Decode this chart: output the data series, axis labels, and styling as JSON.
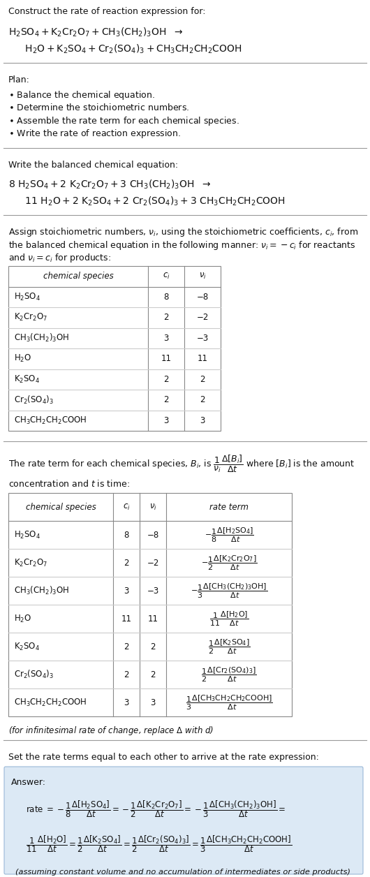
{
  "bg_color": "#ffffff",
  "answer_bg_color": "#dce9f5",
  "title_text": "Construct the rate of reaction expression for:",
  "reaction_line1": "$\\mathrm{H_2SO_4 + K_2Cr_2O_7 + CH_3(CH_2)_3OH}$  $\\rightarrow$",
  "reaction_line2": "  $\\mathrm{H_2O + K_2SO_4 + Cr_2(SO_4)_3 + CH_3CH_2CH_2COOH}$",
  "plan_title": "Plan:",
  "plan_items": [
    "$\\bullet$ Balance the chemical equation.",
    "$\\bullet$ Determine the stoichiometric numbers.",
    "$\\bullet$ Assemble the rate term for each chemical species.",
    "$\\bullet$ Write the rate of reaction expression."
  ],
  "balanced_title": "Write the balanced chemical equation:",
  "balanced_line1": "$\\mathrm{8\\ H_2SO_4 + 2\\ K_2Cr_2O_7 + 3\\ CH_3(CH_2)_3OH}$  $\\rightarrow$",
  "balanced_line2": "  $\\mathrm{11\\ H_2O + 2\\ K_2SO_4 + 2\\ Cr_2(SO_4)_3 + 3\\ CH_3CH_2CH_2COOH}$",
  "assign_text1": "Assign stoichiometric numbers, $\\nu_i$, using the stoichiometric coefficients, $c_i$, from",
  "assign_text2": "the balanced chemical equation in the following manner: $\\nu_i = -c_i$ for reactants",
  "assign_text3": "and $\\nu_i = c_i$ for products:",
  "table1_headers": [
    "chemical species",
    "$c_i$",
    "$\\nu_i$"
  ],
  "table1_species": [
    "$\\mathrm{H_2SO_4}$",
    "$\\mathrm{K_2Cr_2O_7}$",
    "$\\mathrm{CH_3(CH_2)_3OH}$",
    "$\\mathrm{H_2O}$",
    "$\\mathrm{K_2SO_4}$",
    "$\\mathrm{Cr_2(SO_4)_3}$",
    "$\\mathrm{CH_3CH_2CH_2COOH}$"
  ],
  "table1_ci": [
    "8",
    "2",
    "3",
    "11",
    "2",
    "2",
    "3"
  ],
  "table1_vi": [
    "−8",
    "−2",
    "−3",
    "11",
    "2",
    "2",
    "3"
  ],
  "rate_text1": "The rate term for each chemical species, $B_i$, is $\\dfrac{1}{\\nu_i}\\dfrac{\\Delta[B_i]}{\\Delta t}$ where $[B_i]$ is the amount",
  "rate_text2": "concentration and $t$ is time:",
  "table2_headers": [
    "chemical species",
    "$c_i$",
    "$\\nu_i$",
    "rate term"
  ],
  "table2_species": [
    "$\\mathrm{H_2SO_4}$",
    "$\\mathrm{K_2Cr_2O_7}$",
    "$\\mathrm{CH_3(CH_2)_3OH}$",
    "$\\mathrm{H_2O}$",
    "$\\mathrm{K_2SO_4}$",
    "$\\mathrm{Cr_2(SO_4)_3}$",
    "$\\mathrm{CH_3CH_2CH_2COOH}$"
  ],
  "table2_ci": [
    "8",
    "2",
    "3",
    "11",
    "2",
    "2",
    "3"
  ],
  "table2_vi": [
    "−8",
    "−2",
    "−3",
    "11",
    "2",
    "2",
    "3"
  ],
  "table2_rate": [
    "$-\\dfrac{1}{8}\\dfrac{\\Delta[\\mathrm{H_2SO_4}]}{\\Delta t}$",
    "$-\\dfrac{1}{2}\\dfrac{\\Delta[\\mathrm{K_2Cr_2O_7}]}{\\Delta t}$",
    "$-\\dfrac{1}{3}\\dfrac{\\Delta[\\mathrm{CH_3(CH_2)_3OH}]}{\\Delta t}$",
    "$\\dfrac{1}{11}\\dfrac{\\Delta[\\mathrm{H_2O}]}{\\Delta t}$",
    "$\\dfrac{1}{2}\\dfrac{\\Delta[\\mathrm{K_2SO_4}]}{\\Delta t}$",
    "$\\dfrac{1}{2}\\dfrac{\\Delta[\\mathrm{Cr_2(SO_4)_3}]}{\\Delta t}$",
    "$\\dfrac{1}{3}\\dfrac{\\Delta[\\mathrm{CH_3CH_2CH_2COOH}]}{\\Delta t}$"
  ],
  "infinitesimal_note": "(for infinitesimal rate of change, replace $\\Delta$ with $d$)",
  "set_equal_text": "Set the rate terms equal to each other to arrive at the rate expression:",
  "answer_label": "Answer:",
  "rate_ans_line1a": "rate $= -\\dfrac{1}{8}\\dfrac{\\Delta[\\mathrm{H_2SO_4}]}{\\Delta t} = -\\dfrac{1}{2}\\dfrac{\\Delta[\\mathrm{K_2Cr_2O_7}]}{\\Delta t} = -\\dfrac{1}{3}\\dfrac{\\Delta[\\mathrm{CH_3(CH_2)_3OH}]}{\\Delta t} =$",
  "rate_ans_line2a": "$\\dfrac{1}{11}\\dfrac{\\Delta[\\mathrm{H_2O}]}{\\Delta t} = \\dfrac{1}{2}\\dfrac{\\Delta[\\mathrm{K_2SO_4}]}{\\Delta t} = \\dfrac{1}{2}\\dfrac{\\Delta[\\mathrm{Cr_2(SO_4)_3}]}{\\Delta t} = \\dfrac{1}{3}\\dfrac{\\Delta[\\mathrm{CH_3CH_2CH_2COOH}]}{\\Delta t}$",
  "answer_note": "(assuming constant volume and no accumulation of intermediates or side products)"
}
